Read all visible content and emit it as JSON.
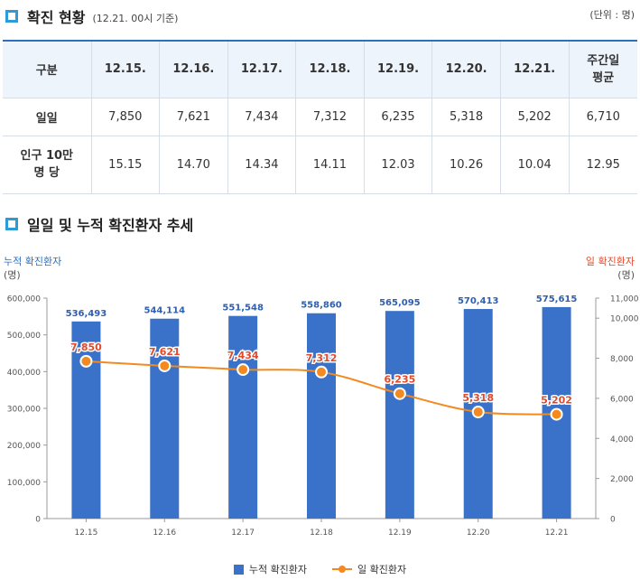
{
  "section1": {
    "title": "확진 현황",
    "subtitle": "(12.21. 00시 기준)",
    "unit": "(단위 : 명)"
  },
  "table": {
    "header": [
      "구분",
      "12.15.",
      "12.16.",
      "12.17.",
      "12.18.",
      "12.19.",
      "12.20.",
      "12.21.",
      "주간일\n평균"
    ],
    "rows": [
      [
        "일일",
        "7,850",
        "7,621",
        "7,434",
        "7,312",
        "6,235",
        "5,318",
        "5,202",
        "6,710"
      ],
      [
        "인구 10만\n명 당",
        "15.15",
        "14.70",
        "14.34",
        "14.11",
        "12.03",
        "10.26",
        "10.04",
        "12.95"
      ]
    ]
  },
  "section2": {
    "title": "일일 및 누적 확진환자 추세"
  },
  "axis_labels": {
    "left": "누적 확진환자",
    "left_unit": "(명)",
    "right": "일 확진환자",
    "right_unit": "(명)"
  },
  "legend": {
    "bar": "누적 확진환자",
    "line": "일 확진환자"
  },
  "colors": {
    "bar": "#3b72c9",
    "line": "#f48a1f",
    "bar_label": "#2e5fb0",
    "line_label": "#e04a2a"
  },
  "chart_data": {
    "type": "bar",
    "categories": [
      "12.15",
      "12.16",
      "12.17",
      "12.18",
      "12.19",
      "12.20",
      "12.21"
    ],
    "series": [
      {
        "name": "누적 확진환자",
        "type": "bar",
        "axis": "left",
        "values": [
          536493,
          544114,
          551548,
          558860,
          565095,
          570413,
          575615
        ]
      },
      {
        "name": "일 확진환자",
        "type": "line",
        "axis": "right",
        "values": [
          7850,
          7621,
          7434,
          7312,
          6235,
          5318,
          5202
        ]
      }
    ],
    "y_left": {
      "min": 0,
      "max": 600000,
      "ticks": [
        0,
        100000,
        200000,
        300000,
        400000,
        500000,
        600000
      ]
    },
    "y_right": {
      "min": 0,
      "max": 11000,
      "ticks": [
        0,
        2000,
        4000,
        6000,
        8000,
        10000,
        11000
      ]
    },
    "data_labels": {
      "bar": [
        "536,493",
        "544,114",
        "551,548",
        "558,860",
        "565,095",
        "570,413",
        "575,615"
      ],
      "line": [
        "7,850",
        "7,621",
        "7,434",
        "7,312",
        "6,235",
        "5,318",
        "5,202"
      ]
    },
    "tick_labels_left": [
      "0",
      "100,000",
      "200,000",
      "300,000",
      "400,000",
      "500,000",
      "600,000"
    ],
    "tick_labels_right": [
      "0",
      "2,000",
      "4,000",
      "6,000",
      "8,000",
      "10,000",
      "11,000"
    ],
    "grid": false,
    "legend_position": "bottom"
  }
}
